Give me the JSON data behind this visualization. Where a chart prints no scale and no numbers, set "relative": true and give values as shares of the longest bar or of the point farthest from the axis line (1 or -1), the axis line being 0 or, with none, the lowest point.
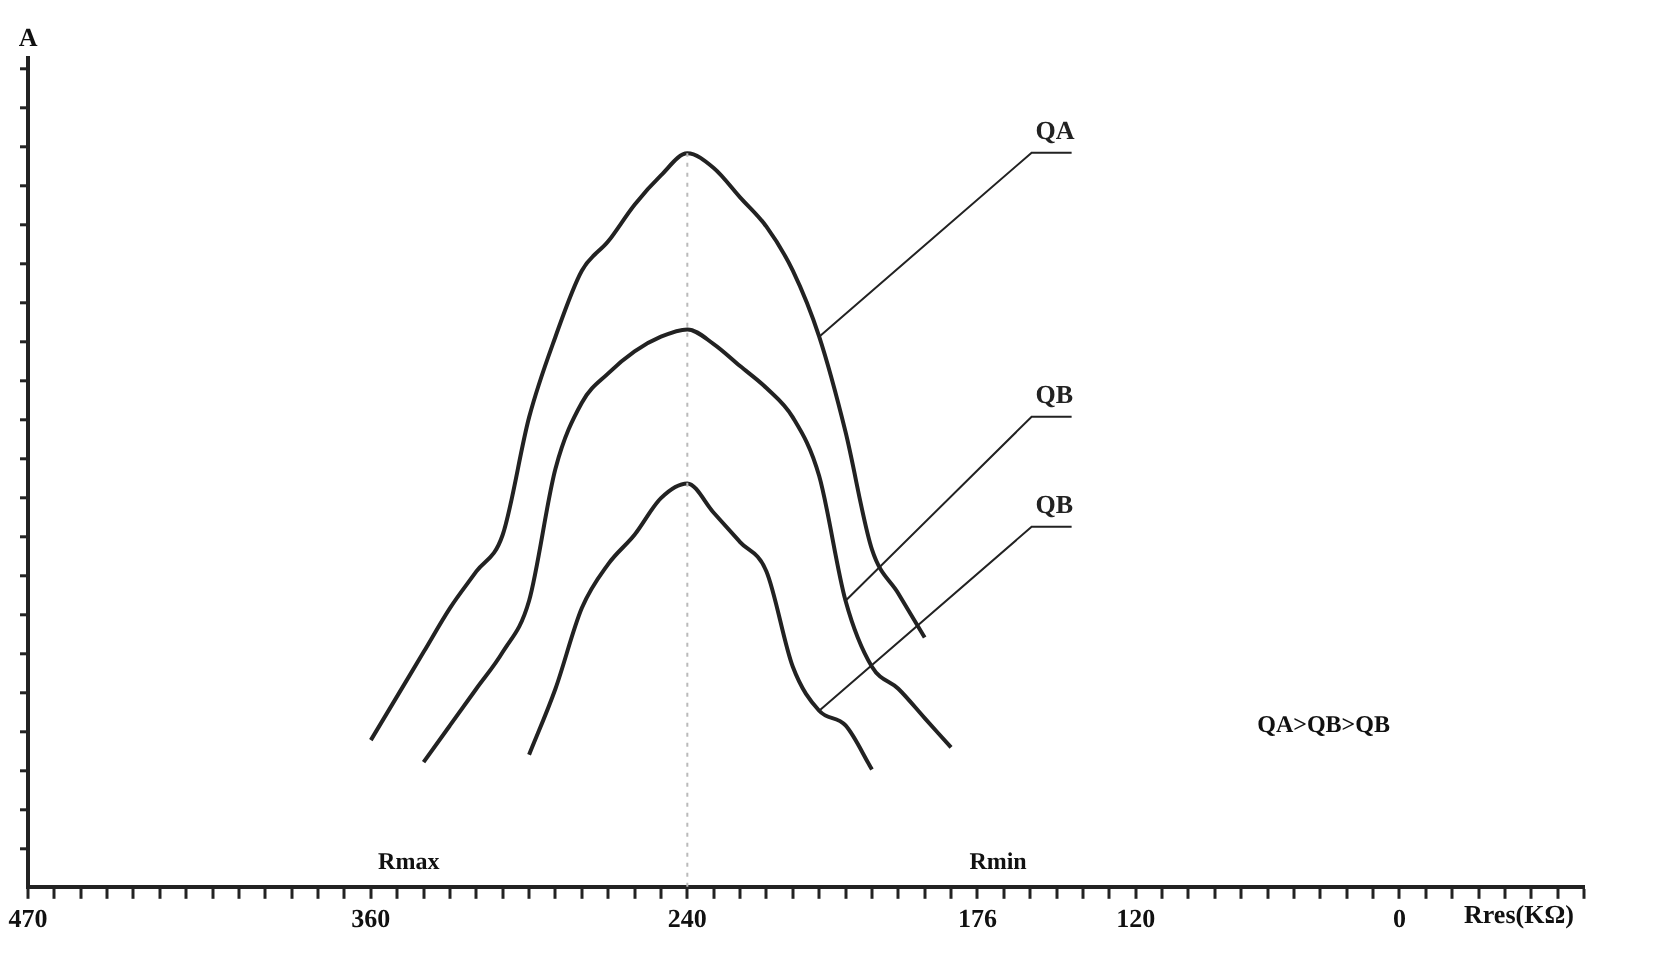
{
  "chart_data": {
    "type": "line",
    "relative": true,
    "ylabel": "A",
    "xlabel": "Rres(KΩ)",
    "categories": [
      "470",
      null,
      null,
      null,
      null,
      null,
      null,
      null,
      null,
      null,
      null,
      null,
      null,
      "360",
      null,
      null,
      null,
      null,
      null,
      null,
      null,
      null,
      null,
      null,
      null,
      "240",
      null,
      null,
      null,
      null,
      null,
      null,
      null,
      null,
      null,
      null,
      "176",
      null,
      null,
      null,
      null,
      null,
      "120",
      null,
      null,
      null,
      null,
      null,
      null,
      null,
      null,
      null,
      "0",
      null,
      null,
      null,
      null,
      null,
      null,
      null
    ],
    "series": [
      {
        "name": "QA",
        "color": "#222222",
        "values": [
          null,
          null,
          null,
          null,
          null,
          null,
          null,
          null,
          null,
          null,
          null,
          null,
          null,
          0.2,
          0.26,
          0.32,
          0.38,
          0.43,
          0.48,
          0.64,
          0.75,
          0.84,
          0.88,
          0.93,
          0.97,
          1,
          0.98,
          0.94,
          0.9,
          0.84,
          0.75,
          0.62,
          0.46,
          0.4,
          0.34,
          null,
          null,
          null,
          null,
          null,
          null,
          null,
          null,
          null,
          null,
          null,
          null,
          null,
          null,
          null,
          null,
          null,
          null,
          null,
          null,
          null,
          null,
          null,
          null,
          null
        ]
      },
      {
        "name": "QB",
        "color": "#222222",
        "values": [
          null,
          null,
          null,
          null,
          null,
          null,
          null,
          null,
          null,
          null,
          null,
          null,
          null,
          null,
          null,
          0.17,
          0.22,
          0.27,
          0.32,
          0.39,
          0.57,
          0.66,
          0.7,
          0.73,
          0.75,
          0.76,
          0.74,
          0.71,
          0.68,
          0.64,
          0.56,
          0.39,
          0.3,
          0.27,
          0.23,
          0.19,
          null,
          null,
          null,
          null,
          null,
          null,
          null,
          null,
          null,
          null,
          null,
          null,
          null,
          null,
          null,
          null,
          null,
          null,
          null,
          null,
          null,
          null,
          null,
          null
        ]
      },
      {
        "name": "QB",
        "color": "#222222",
        "values": [
          null,
          null,
          null,
          null,
          null,
          null,
          null,
          null,
          null,
          null,
          null,
          null,
          null,
          null,
          null,
          null,
          null,
          null,
          null,
          0.18,
          0.27,
          0.38,
          0.44,
          0.48,
          0.53,
          0.55,
          0.51,
          0.47,
          0.43,
          0.3,
          0.24,
          0.22,
          0.16,
          null,
          null,
          null,
          null,
          null,
          null,
          null,
          null,
          null,
          null,
          null,
          null,
          null,
          null,
          null,
          null,
          null,
          null,
          null,
          null,
          null,
          null,
          null,
          null,
          null,
          null,
          null
        ]
      }
    ],
    "ref_lines": [
      {
        "axis": "x",
        "value": "240",
        "color": "#bbbbbb",
        "line_style": "dotted"
      }
    ],
    "annotations": [
      "Rmax",
      "Rmin",
      "QA>QB>QB"
    ],
    "grid": false,
    "legend": false,
    "marker": "none",
    "line_style": "solid"
  }
}
